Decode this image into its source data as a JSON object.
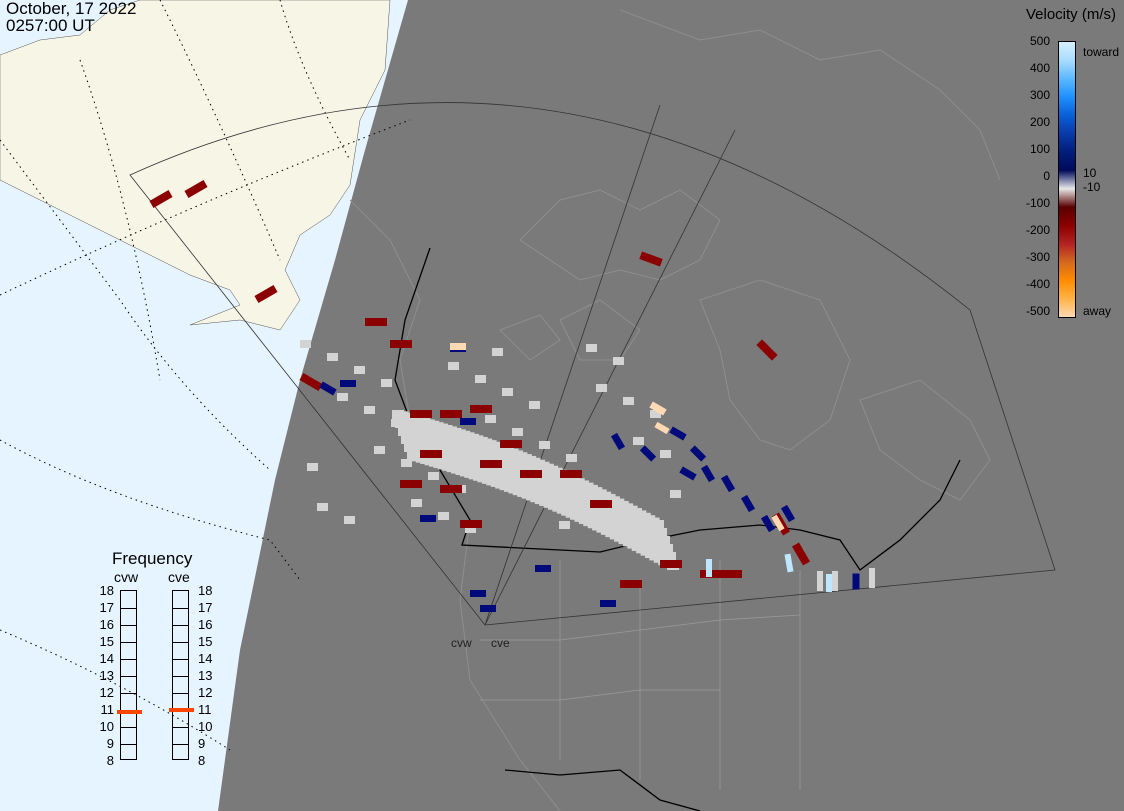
{
  "header": {
    "date": "October, 17 2022",
    "time": "0257:00 UT"
  },
  "velocity_scale": {
    "title": "Velocity (m/s)",
    "ticks": [
      "500",
      "400",
      "300",
      "200",
      "100",
      "10",
      "0",
      "-10",
      "-100",
      "-200",
      "-300",
      "-400",
      "-500"
    ],
    "toward_label": "toward",
    "away_label": "away",
    "colors": [
      "#d6f0ff",
      "#a8dcff",
      "#5cb8ff",
      "#1e90ff",
      "#0a5fd6",
      "#0a3aa8",
      "#001e7a",
      "#000a5a",
      "#e8e8e8",
      "#5a0000",
      "#8b0000",
      "#b22222",
      "#d2691e",
      "#ff8c00",
      "#ffb347",
      "#ffd9b3"
    ]
  },
  "frequency": {
    "title": "Frequency",
    "radars": [
      "cvw",
      "cve"
    ],
    "scale": [
      "18",
      "17",
      "16",
      "15",
      "14",
      "13",
      "12",
      "11",
      "10",
      "9",
      "8"
    ],
    "selected": {
      "cvw": 10.9,
      "cve": 11.0
    },
    "marker_color": "#ff4500"
  },
  "radar_sites": [
    "cvw",
    "cve"
  ],
  "map": {
    "night_color": "#7a7a7a",
    "day_ocean_color": "#e6f4ff",
    "day_land_color": "#f7f5e6",
    "ground_scatter_color": "#d3d3d3"
  }
}
